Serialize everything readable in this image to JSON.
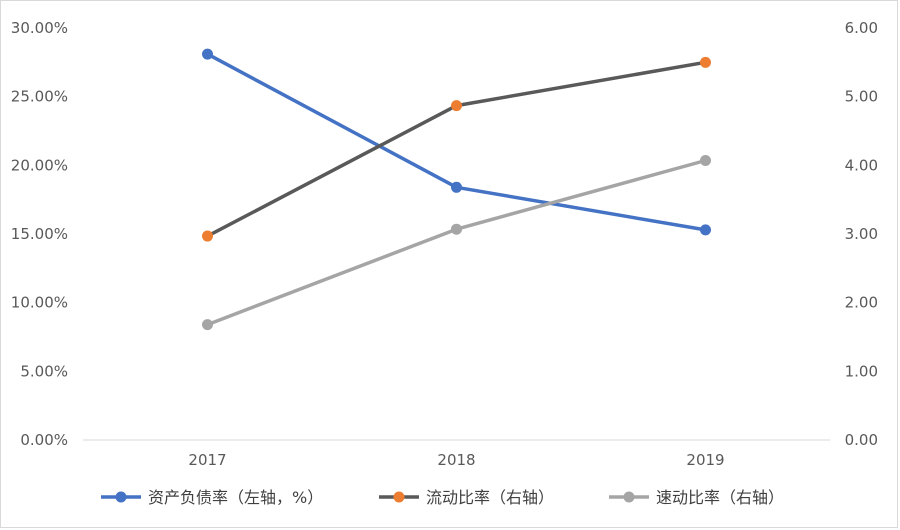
{
  "chart_data": {
    "type": "line",
    "categories": [
      "2017",
      "2018",
      "2019"
    ],
    "series": [
      {
        "name": "资产负债率（左轴，%）",
        "axis": "left",
        "values": [
          28.1,
          18.4,
          15.3
        ],
        "color": "#4472C4",
        "marker_color": "#4472C4",
        "line_color": "#4472C4"
      },
      {
        "name": "流动比率（右轴）",
        "axis": "right",
        "values": [
          2.97,
          4.87,
          5.5
        ],
        "color": "#ED7D31",
        "marker_color": "#ED7D31",
        "line_color": "#595959"
      },
      {
        "name": "速动比率（右轴）",
        "axis": "right",
        "values": [
          1.68,
          3.07,
          4.07
        ],
        "color": "#A5A5A5",
        "marker_color": "#A5A5A5",
        "line_color": "#A5A5A5"
      }
    ],
    "left_axis": {
      "ticks": [
        "0.00%",
        "5.00%",
        "10.00%",
        "15.00%",
        "20.00%",
        "25.00%",
        "30.00%"
      ],
      "min": 0,
      "max": 30
    },
    "right_axis": {
      "ticks": [
        "0.00",
        "1.00",
        "2.00",
        "3.00",
        "4.00",
        "5.00",
        "6.00"
      ],
      "min": 0,
      "max": 6
    },
    "grid": false,
    "legend_position": "bottom"
  }
}
